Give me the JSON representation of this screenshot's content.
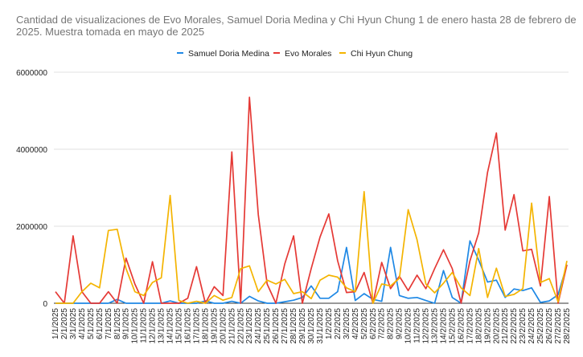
{
  "chart_data": {
    "type": "line",
    "title": "Cantidad de visualizaciones de Evo Morales, Samuel Doria Medina y Chi Hyun Chung 1 de enero  hasta 28 de febrero de 2025. Muestra tomada en mayo de 2025",
    "xlabel": "",
    "ylabel": "",
    "ylim": [
      0,
      6000000
    ],
    "yticks": [
      0,
      2000000,
      4000000,
      6000000
    ],
    "ytick_labels": [
      "0",
      "2000000",
      "4000000",
      "6000000"
    ],
    "grid": true,
    "legend_position": "top",
    "x": [
      "1/1/2025",
      "2/1/2025",
      "3/1/2025",
      "4/1/2025",
      "5/1/2025",
      "6/1/2025",
      "7/1/2025",
      "8/1/2025",
      "9/1/2025",
      "10/1/2025",
      "11/1/2025",
      "12/1/2025",
      "13/1/2025",
      "14/1/2025",
      "15/1/2025",
      "16/1/2025",
      "17/1/2025",
      "18/1/2025",
      "19/1/2025",
      "20/1/2025",
      "21/1/2025",
      "22/1/2025",
      "23/1/2025",
      "24/1/2025",
      "25/1/2025",
      "26/1/2025",
      "27/1/2025",
      "28/1/2025",
      "29/1/2025",
      "30/1/2025",
      "31/1/2025",
      "1/2/2025",
      "2/2/2025",
      "3/2/2025",
      "4/2/2025",
      "5/2/2025",
      "6/2/2025",
      "7/2/2025",
      "8/2/2025",
      "9/2/2025",
      "10/2/2025",
      "11/2/2025",
      "12/2/2025",
      "13/2/2025",
      "14/2/2025",
      "15/2/2025",
      "16/2/2025",
      "17/2/2025",
      "18/2/2025",
      "19/2/2025",
      "20/2/2025",
      "21/2/2025",
      "22/2/2025",
      "23/2/2025",
      "24/2/2025",
      "25/2/2025",
      "26/2/2025",
      "27/2/2025",
      "28/2/2025"
    ],
    "series": [
      {
        "name": "Samuel Doria Medina",
        "color": "#1e88e5",
        "values": [
          0,
          0,
          0,
          0,
          0,
          0,
          0,
          100000,
          0,
          0,
          0,
          0,
          0,
          60000,
          0,
          0,
          0,
          60000,
          0,
          0,
          50000,
          0,
          180000,
          60000,
          0,
          0,
          40000,
          80000,
          150000,
          450000,
          130000,
          130000,
          300000,
          1450000,
          70000,
          250000,
          100000,
          50000,
          1450000,
          200000,
          130000,
          150000,
          70000,
          0,
          850000,
          150000,
          0,
          1620000,
          1120000,
          550000,
          600000,
          150000,
          370000,
          330000,
          400000,
          20000,
          60000,
          220000,
          1000000
        ]
      },
      {
        "name": "Evo Morales",
        "color": "#e53935",
        "values": [
          300000,
          0,
          1750000,
          300000,
          0,
          0,
          300000,
          0,
          1170000,
          500000,
          0,
          1080000,
          0,
          0,
          0,
          130000,
          950000,
          0,
          430000,
          200000,
          3930000,
          0,
          5350000,
          2300000,
          500000,
          0,
          1020000,
          1750000,
          0,
          900000,
          1720000,
          2320000,
          1100000,
          280000,
          300000,
          800000,
          0,
          1060000,
          380000,
          700000,
          330000,
          730000,
          380000,
          900000,
          1390000,
          900000,
          0,
          1100000,
          1830000,
          3400000,
          4420000,
          1900000,
          2820000,
          1360000,
          1400000,
          450000,
          2770000,
          0,
          1000000
        ]
      },
      {
        "name": "Chi Hyun Chung",
        "color": "#f4b400",
        "values": [
          0,
          0,
          0,
          300000,
          520000,
          400000,
          1890000,
          1920000,
          900000,
          300000,
          200000,
          540000,
          660000,
          2800000,
          70000,
          0,
          50000,
          0,
          200000,
          80000,
          150000,
          900000,
          970000,
          300000,
          600000,
          500000,
          620000,
          250000,
          300000,
          120000,
          600000,
          730000,
          680000,
          400000,
          300000,
          2900000,
          0,
          500000,
          450000,
          650000,
          2430000,
          1650000,
          500000,
          270000,
          520000,
          800000,
          400000,
          200000,
          1420000,
          150000,
          910000,
          180000,
          230000,
          380000,
          2600000,
          540000,
          640000,
          40000,
          1100000
        ]
      }
    ]
  }
}
